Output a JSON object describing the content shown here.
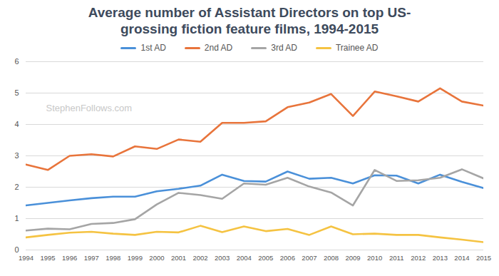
{
  "chart_data": {
    "type": "line",
    "title": "Average number of Assistant Directors on top US-grossing fiction feature films, 1994-2015",
    "annotations": [
      "StephenFollows.com"
    ],
    "x": [
      1994,
      1995,
      1996,
      1997,
      1998,
      1999,
      2000,
      2001,
      2002,
      2003,
      2004,
      2005,
      2006,
      2007,
      2008,
      2009,
      2010,
      2011,
      2012,
      2013,
      2014,
      2015
    ],
    "xlim": [
      1994,
      2015
    ],
    "xticks": [
      1994,
      1995,
      1996,
      1997,
      1998,
      1999,
      2000,
      2001,
      2002,
      2003,
      2004,
      2005,
      2006,
      2007,
      2008,
      2009,
      2010,
      2011,
      2012,
      2013,
      2014,
      2015
    ],
    "ylim": [
      0,
      6
    ],
    "yticks": [
      0,
      1,
      2,
      3,
      4,
      5,
      6
    ],
    "grid": true,
    "legend": "top",
    "series": [
      {
        "name": "1st AD",
        "color": "#4a90d9",
        "values": [
          1.42,
          1.5,
          1.58,
          1.65,
          1.7,
          1.7,
          1.87,
          1.95,
          2.05,
          2.4,
          2.2,
          2.18,
          2.5,
          2.27,
          2.3,
          2.12,
          2.38,
          2.37,
          2.12,
          2.4,
          2.17,
          1.97
        ]
      },
      {
        "name": "2nd AD",
        "color": "#e8743b",
        "values": [
          2.72,
          2.55,
          3.0,
          3.05,
          2.98,
          3.3,
          3.22,
          3.52,
          3.45,
          4.05,
          4.05,
          4.1,
          4.55,
          4.7,
          4.97,
          4.27,
          5.05,
          4.9,
          4.73,
          5.15,
          4.73,
          4.6
        ]
      },
      {
        "name": "3rd AD",
        "color": "#a5a5a5",
        "values": [
          0.62,
          0.68,
          0.66,
          0.83,
          0.86,
          0.98,
          1.45,
          1.82,
          1.75,
          1.63,
          2.12,
          2.08,
          2.3,
          2.02,
          1.83,
          1.42,
          2.55,
          2.2,
          2.22,
          2.3,
          2.57,
          2.28
        ]
      },
      {
        "name": "Trainee AD",
        "color": "#f5c342",
        "values": [
          0.4,
          0.48,
          0.55,
          0.58,
          0.52,
          0.48,
          0.58,
          0.56,
          0.77,
          0.57,
          0.75,
          0.6,
          0.67,
          0.48,
          0.75,
          0.5,
          0.52,
          0.48,
          0.48,
          0.4,
          0.33,
          0.25
        ]
      }
    ]
  }
}
